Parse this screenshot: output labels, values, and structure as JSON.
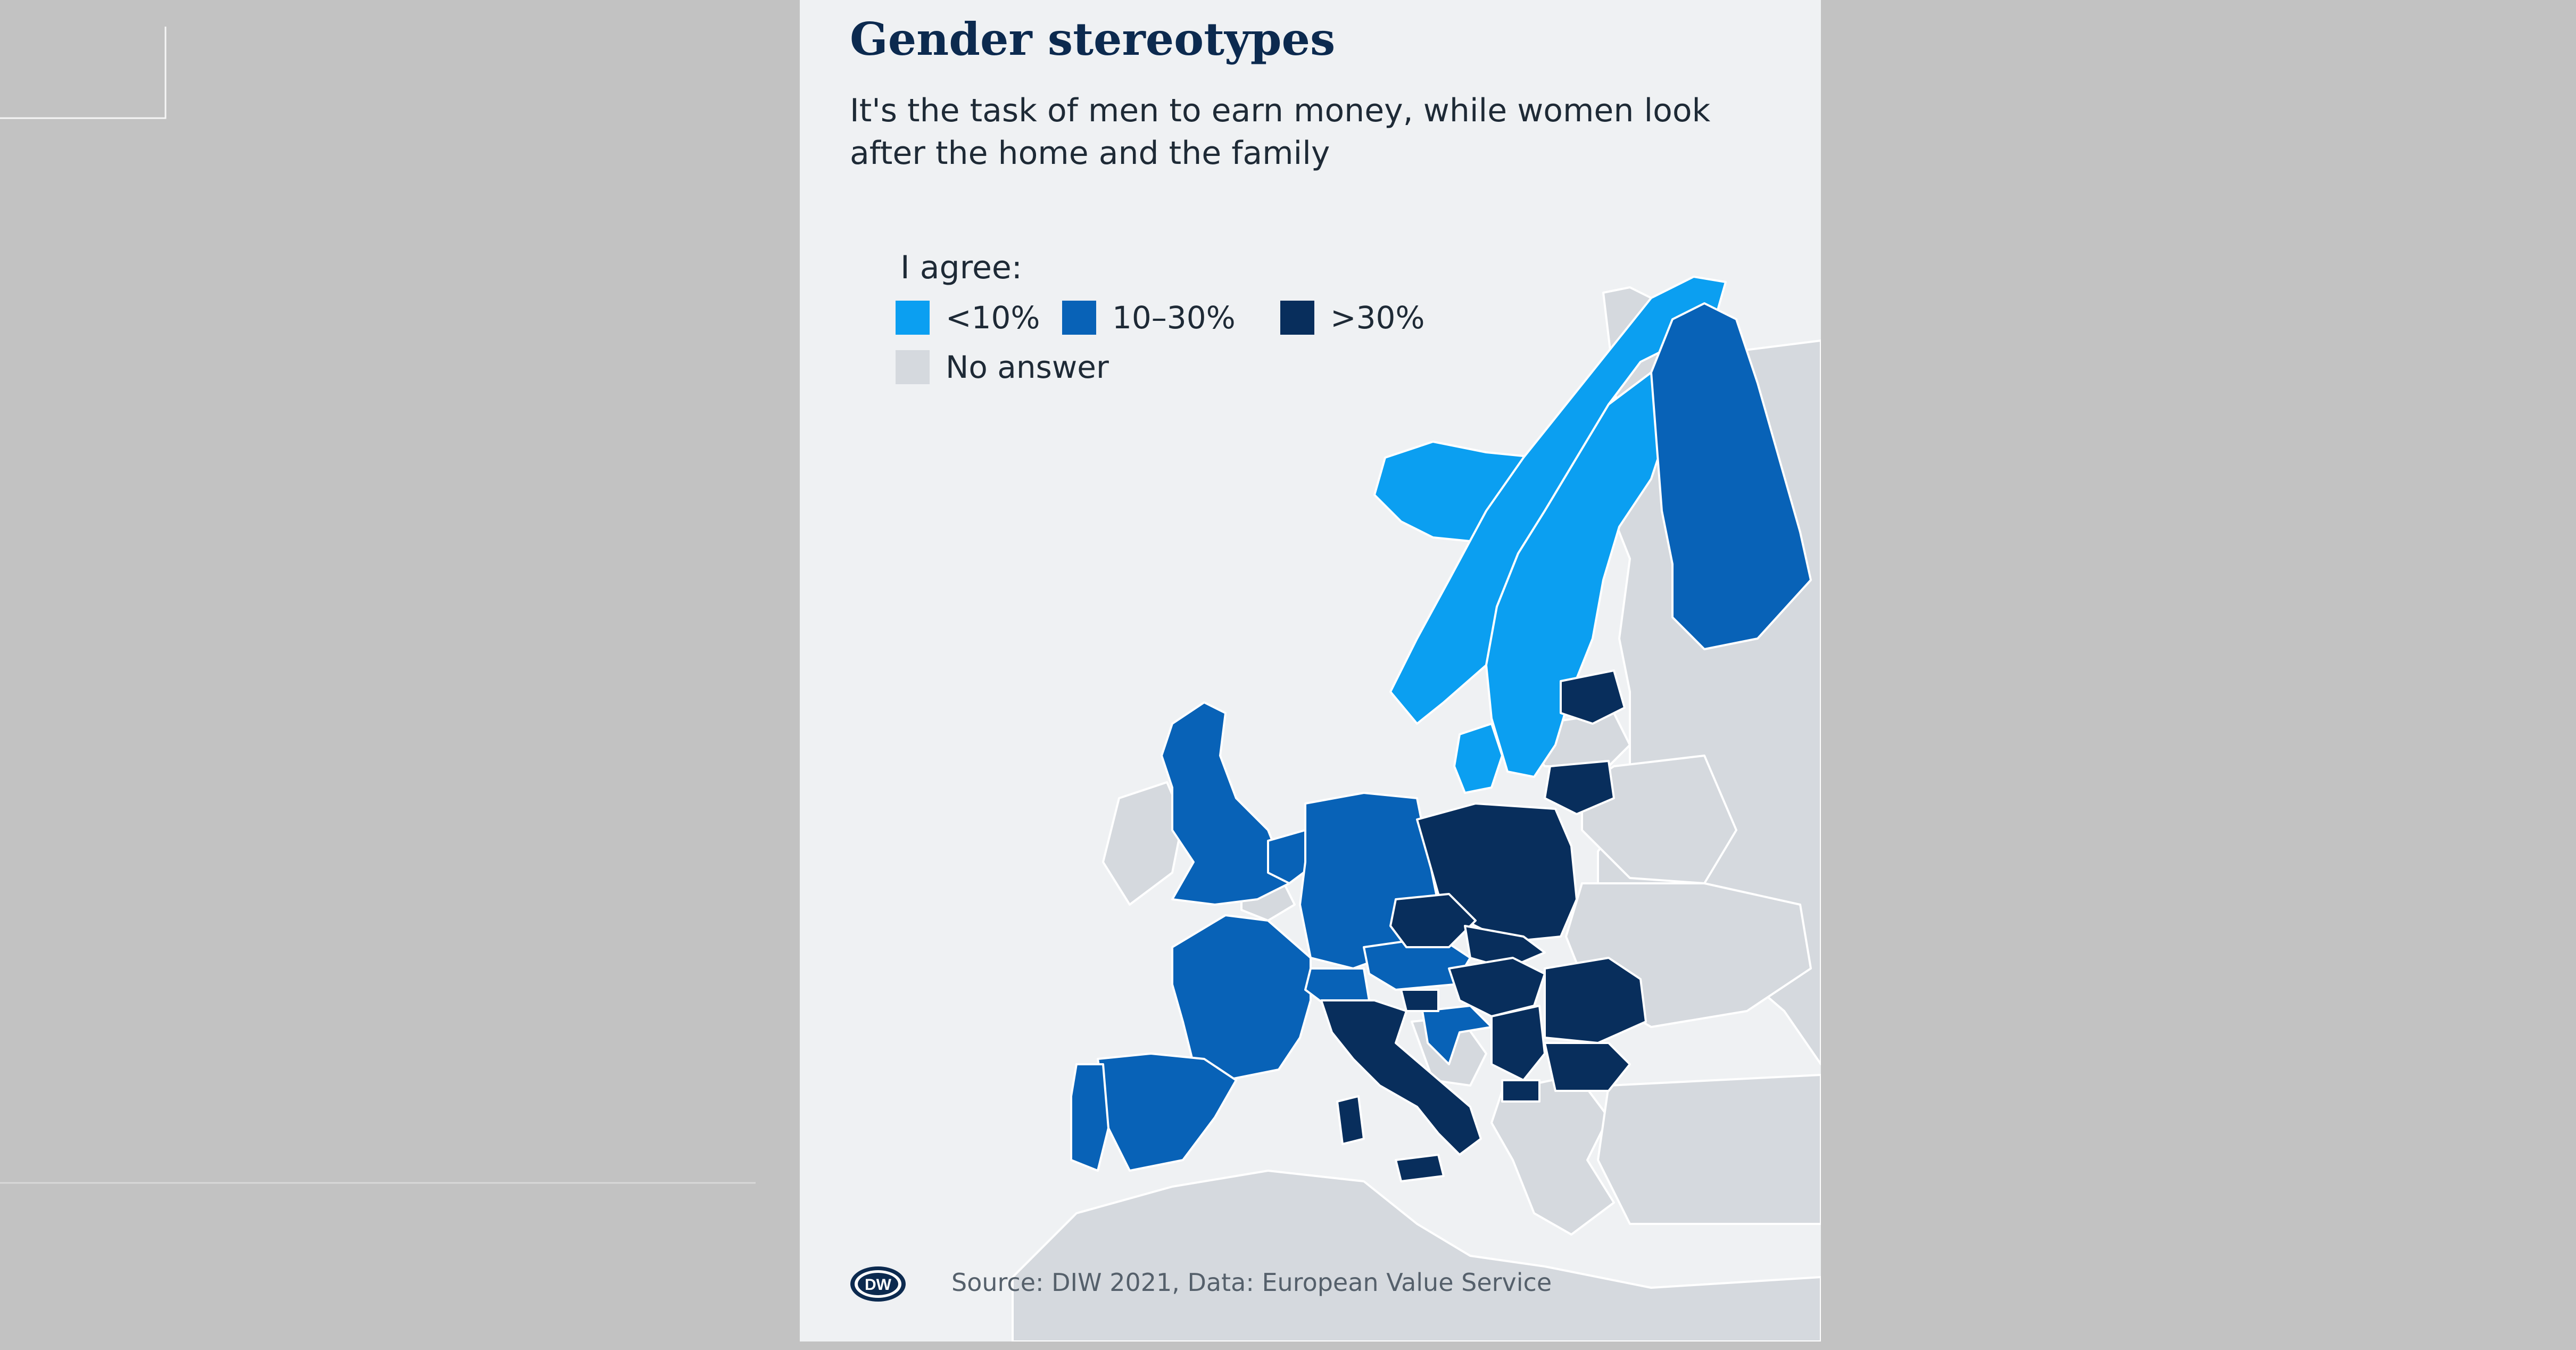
{
  "title": "Gender stereotypes",
  "subtitle": "It's the task of men to earn money, while women look after the home and the family",
  "legend": {
    "title": "I agree:",
    "items": [
      {
        "label": "<10%",
        "color": "#0b9ff1"
      },
      {
        "label": "10–30%",
        "color": "#0862b7"
      },
      {
        "label": ">30%",
        "color": "#082e5c"
      },
      {
        "label": "No answer",
        "color": "#d5d9de"
      }
    ]
  },
  "colors": {
    "card_background": "#eff1f3",
    "page_background": "#c2c2c2",
    "no_data_land": "#d5d9de"
  },
  "countries": {
    "below_10": [
      "Iceland",
      "Norway",
      "Sweden",
      "Denmark"
    ],
    "between_10_30": [
      "Finland",
      "United Kingdom",
      "Netherlands",
      "Germany",
      "France",
      "Spain",
      "Portugal",
      "Switzerland",
      "Austria",
      "Croatia"
    ],
    "above_30": [
      "Estonia",
      "Lithuania",
      "Poland",
      "Czechia",
      "Slovakia",
      "Hungary",
      "Slovenia",
      "Italy",
      "Serbia",
      "Romania",
      "Bulgaria",
      "North Macedonia"
    ],
    "no_answer": [
      "Russia",
      "Belarus",
      "Ukraine",
      "Latvia",
      "Ireland",
      "Belgium",
      "Greece",
      "Turkey",
      "Bosnia and Herzegovina",
      "Albania",
      "Montenegro",
      "Moldova",
      "North Africa"
    ]
  },
  "logo_text": "DW",
  "source": "Source: DIW 2021, Data: European Value Service"
}
